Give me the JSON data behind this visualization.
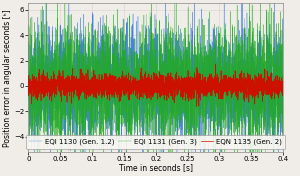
{
  "title": "",
  "xlabel": "Time in seconds [s]",
  "ylabel": "Position error in angular seconds [ʰ]",
  "xlim": [
    0,
    0.4
  ],
  "ylim": [
    -5.2,
    6.5
  ],
  "yticks": [
    -4,
    -2,
    0,
    2,
    4,
    6
  ],
  "xticks": [
    0,
    0.05,
    0.1,
    0.15,
    0.2,
    0.25,
    0.3,
    0.35,
    0.4
  ],
  "xtick_labels": [
    "0",
    "0.05",
    "0.1",
    "0.15",
    "0.2",
    "0.25",
    "0.3",
    "0.35",
    "0.4"
  ],
  "legend": [
    {
      "label": "EQI 1130 (Gen. 1.2)",
      "color": "#3377dd"
    },
    {
      "label": "EQI 1131 (Gen. 3)",
      "color": "#22aa22"
    },
    {
      "label": "EQN 1135 (Gen. 2)",
      "color": "#cc1100"
    }
  ],
  "n_points": 3000,
  "seed": 42,
  "blue_amplitude": 2.2,
  "green_amplitude": 2.4,
  "red_amplitude": 0.45,
  "background_color": "#f0ede8",
  "plot_bg_color": "#f0ede8",
  "grid_color": "#d0ccc8",
  "legend_fontsize": 5.0,
  "axis_fontsize": 5.5,
  "tick_fontsize": 5.0,
  "figsize": [
    3.0,
    1.76
  ],
  "dpi": 100
}
